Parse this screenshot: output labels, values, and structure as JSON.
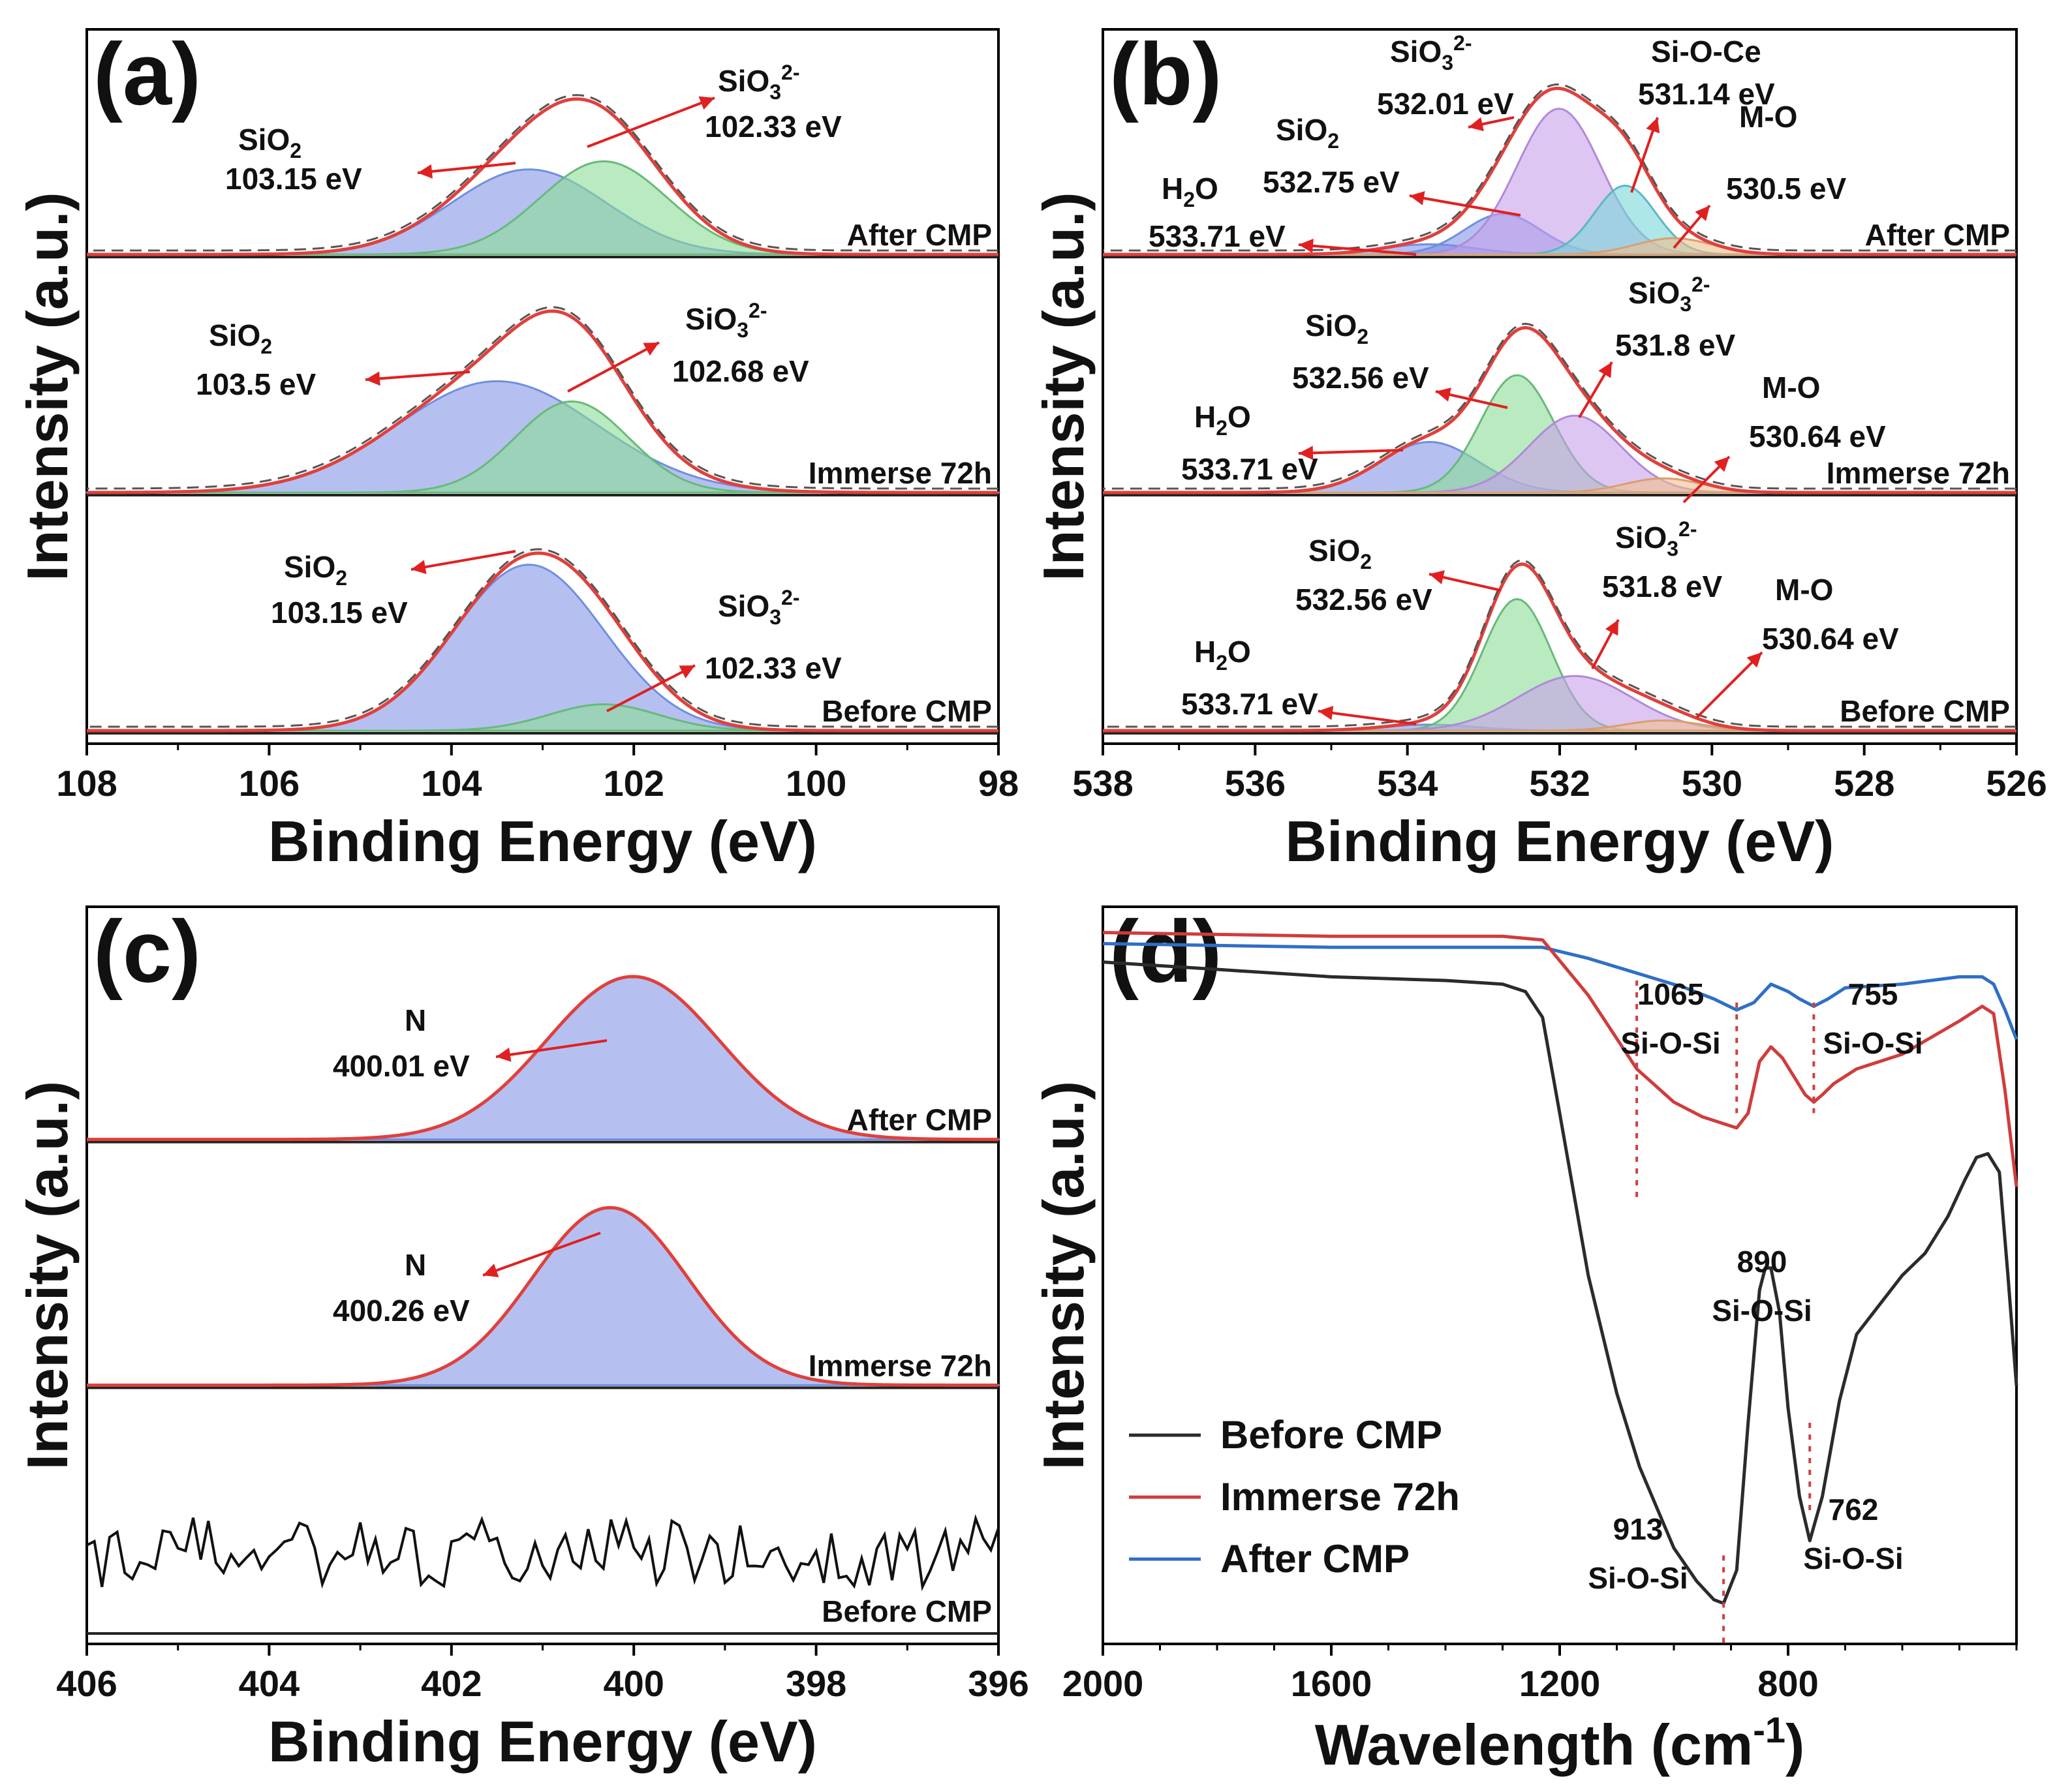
{
  "chart_data": [
    {
      "type": "line",
      "panel": "(a)",
      "xlabel": "Binding Energy (eV)",
      "ylabel": "Intensity (a.u.)",
      "xlim": [
        108,
        98
      ],
      "x_ticks": [
        "108",
        "106",
        "104",
        "102",
        "100",
        "98"
      ],
      "series_labels": [
        "After CMP",
        "Immerse 72h",
        "Before CMP"
      ],
      "annotations": [
        {
          "name": "SiO",
          "sub": "2",
          "sup": "",
          "value": "103.15 eV"
        },
        {
          "name": "SiO",
          "sub": "3",
          "sup": "2-",
          "value": "102.33 eV"
        },
        {
          "name": "SiO",
          "sub": "2",
          "sup": "",
          "value": "103.5 eV"
        },
        {
          "name": "SiO",
          "sub": "3",
          "sup": "2-",
          "value": "102.68 eV"
        },
        {
          "name": "SiO",
          "sub": "2",
          "sup": "",
          "value": "103.15 eV"
        },
        {
          "name": "SiO",
          "sub": "3",
          "sup": "2-",
          "value": "102.33 eV"
        }
      ],
      "stacks": [
        {
          "label": "After CMP",
          "peaks": [
            {
              "component": "SiO2",
              "center": 103.15,
              "height": 0.42,
              "width": 0.85,
              "color": "blue"
            },
            {
              "component": "SiO3 2-",
              "center": 102.33,
              "height": 0.46,
              "width": 0.7,
              "color": "green"
            }
          ]
        },
        {
          "label": "Immerse 72h",
          "peaks": [
            {
              "component": "SiO2",
              "center": 103.5,
              "height": 0.55,
              "width": 1.1,
              "color": "blue"
            },
            {
              "component": "SiO3 2-",
              "center": 102.68,
              "height": 0.45,
              "width": 0.62,
              "color": "green"
            }
          ]
        },
        {
          "label": "Before CMP",
          "peaks": [
            {
              "component": "SiO2",
              "center": 103.15,
              "height": 0.82,
              "width": 0.82,
              "color": "blue"
            },
            {
              "component": "SiO3 2-",
              "center": 102.33,
              "height": 0.13,
              "width": 0.6,
              "color": "green"
            }
          ]
        }
      ]
    },
    {
      "type": "line",
      "panel": "(b)",
      "xlabel": "Binding Energy (eV)",
      "ylabel": "Intensity (a.u.)",
      "xlim": [
        538,
        526
      ],
      "x_ticks": [
        "538",
        "536",
        "534",
        "532",
        "530",
        "528",
        "526"
      ],
      "series_labels": [
        "After CMP",
        "Immerse 72h",
        "Before CMP"
      ],
      "annotations": [
        {
          "name": "SiO",
          "sub": "3",
          "sup": "2-",
          "value": "532.01 eV"
        },
        {
          "name": "Si-O-Ce",
          "sub": "",
          "sup": "",
          "value": "531.14 eV"
        },
        {
          "name": "SiO",
          "sub": "2",
          "sup": "",
          "value": "532.75 eV"
        },
        {
          "name": "M-O",
          "sub": "",
          "sup": "",
          "value": "530.5 eV"
        },
        {
          "name": "H",
          "sub": "2",
          "sup": "",
          "name2": "O",
          "value": "533.71 eV"
        },
        {
          "name": "SiO",
          "sub": "3",
          "sup": "2-",
          "value": "531.8 eV"
        },
        {
          "name": "SiO",
          "sub": "2",
          "sup": "",
          "value": "532.56 eV"
        },
        {
          "name": "M-O",
          "sub": "",
          "sup": "",
          "value": "530.64 eV"
        },
        {
          "name": "H",
          "sub": "2",
          "sup": "",
          "name2": "O",
          "value": "533.71 eV"
        },
        {
          "name": "SiO",
          "sub": "2",
          "sup": "",
          "value": "532.56 eV"
        },
        {
          "name": "SiO",
          "sub": "3",
          "sup": "2-",
          "value": "531.8 eV"
        },
        {
          "name": "M-O",
          "sub": "",
          "sup": "",
          "value": "530.64 eV"
        },
        {
          "name": "H",
          "sub": "2",
          "sup": "",
          "name2": "O",
          "value": "533.71 eV"
        }
      ],
      "stacks": [
        {
          "label": "After CMP",
          "peaks": [
            {
              "component": "H2O",
              "center": 533.71,
              "height": 0.05,
              "width": 0.6,
              "color": "blue"
            },
            {
              "component": "SiO2",
              "center": 532.75,
              "height": 0.2,
              "width": 0.5,
              "color": "blue"
            },
            {
              "component": "SiO3 2-",
              "center": 532.01,
              "height": 0.72,
              "width": 0.55,
              "color": "purple"
            },
            {
              "component": "Si-O-Ce",
              "center": 531.14,
              "height": 0.34,
              "width": 0.4,
              "color": "cyan"
            },
            {
              "component": "M-O",
              "center": 530.5,
              "height": 0.08,
              "width": 0.5,
              "color": "orange"
            }
          ]
        },
        {
          "label": "Immerse 72h",
          "peaks": [
            {
              "component": "H2O",
              "center": 533.71,
              "height": 0.25,
              "width": 0.65,
              "color": "blue"
            },
            {
              "component": "SiO2",
              "center": 532.56,
              "height": 0.58,
              "width": 0.48,
              "color": "green"
            },
            {
              "component": "SiO3 2-",
              "center": 531.8,
              "height": 0.38,
              "width": 0.6,
              "color": "purple"
            },
            {
              "component": "M-O",
              "center": 530.64,
              "height": 0.07,
              "width": 0.5,
              "color": "orange"
            }
          ]
        },
        {
          "label": "Before CMP",
          "peaks": [
            {
              "component": "H2O",
              "center": 533.71,
              "height": 0.03,
              "width": 0.6,
              "color": "blue"
            },
            {
              "component": "SiO2",
              "center": 532.56,
              "height": 0.65,
              "width": 0.45,
              "color": "green"
            },
            {
              "component": "SiO3 2-",
              "center": 531.8,
              "height": 0.27,
              "width": 0.75,
              "color": "purple"
            },
            {
              "component": "M-O",
              "center": 530.64,
              "height": 0.05,
              "width": 0.5,
              "color": "orange"
            }
          ]
        }
      ]
    },
    {
      "type": "line",
      "panel": "(c)",
      "xlabel": "Binding Energy (eV)",
      "ylabel": "Intensity (a.u.)",
      "xlim": [
        406,
        396
      ],
      "x_ticks": [
        "406",
        "404",
        "402",
        "400",
        "398",
        "396"
      ],
      "series_labels": [
        "After CMP",
        "Immerse 72h",
        "Before CMP"
      ],
      "annotations": [
        {
          "name": "N",
          "sub": "",
          "sup": "",
          "value": "400.01 eV"
        },
        {
          "name": "N",
          "sub": "",
          "sup": "",
          "value": "400.26 eV"
        }
      ],
      "stacks": [
        {
          "label": "After CMP",
          "peaks": [
            {
              "component": "N",
              "center": 400.01,
              "height": 0.78,
              "width": 0.95,
              "color": "blue"
            }
          ]
        },
        {
          "label": "Immerse 72h",
          "peaks": [
            {
              "component": "N",
              "center": 400.26,
              "height": 0.85,
              "width": 0.85,
              "color": "blue"
            }
          ]
        },
        {
          "label": "Before CMP",
          "peaks": []
        }
      ]
    },
    {
      "type": "line",
      "panel": "(d)",
      "xlabel_main": "Wavelength (cm",
      "xlabel_sup": "-1",
      "xlabel_end": ")",
      "ylabel": "Intensity (a.u.)",
      "xlim": [
        2000,
        400
      ],
      "x_ticks": [
        "2000",
        "1600",
        "1200",
        "800"
      ],
      "legend": [
        "Before CMP",
        "Immerse 72h",
        "After CMP"
      ],
      "colors": [
        "#2b2b2b",
        "#d03c3c",
        "#2f6fc6"
      ],
      "annotations": [
        {
          "num": "1065",
          "label": "Si-O-Si"
        },
        {
          "num": "755",
          "label": "Si-O-Si"
        },
        {
          "num": "890",
          "label": "Si-O-Si"
        },
        {
          "num": "913",
          "label": "Si-O-Si"
        },
        {
          "num": "762",
          "label": "Si-O-Si"
        }
      ],
      "series": [
        {
          "name": "After CMP",
          "x": [
            2000,
            1600,
            1300,
            1230,
            1150,
            1065,
            980,
            930,
            890,
            860,
            830,
            800,
            780,
            755,
            730,
            700,
            600,
            500,
            460,
            440,
            420,
            400
          ],
          "y": [
            0.95,
            0.945,
            0.945,
            0.945,
            0.93,
            0.91,
            0.89,
            0.875,
            0.86,
            0.87,
            0.895,
            0.885,
            0.875,
            0.865,
            0.875,
            0.89,
            0.895,
            0.905,
            0.905,
            0.895,
            0.86,
            0.82
          ]
        },
        {
          "name": "Immerse 72h",
          "x": [
            2000,
            1600,
            1300,
            1230,
            1150,
            1065,
            1000,
            950,
            910,
            890,
            870,
            850,
            830,
            810,
            790,
            770,
            755,
            740,
            720,
            680,
            600,
            500,
            460,
            440,
            420,
            400
          ],
          "y": [
            0.965,
            0.96,
            0.96,
            0.955,
            0.88,
            0.78,
            0.735,
            0.715,
            0.705,
            0.7,
            0.72,
            0.79,
            0.81,
            0.795,
            0.77,
            0.745,
            0.735,
            0.745,
            0.76,
            0.78,
            0.8,
            0.845,
            0.865,
            0.855,
            0.75,
            0.62
          ]
        },
        {
          "name": "Before CMP",
          "x": [
            2000,
            1800,
            1600,
            1400,
            1300,
            1260,
            1230,
            1200,
            1150,
            1100,
            1060,
            1000,
            960,
            930,
            913,
            890,
            870,
            850,
            840,
            830,
            815,
            800,
            780,
            762,
            740,
            710,
            680,
            640,
            600,
            560,
            520,
            490,
            470,
            450,
            430,
            415,
            400
          ],
          "y": [
            0.925,
            0.915,
            0.905,
            0.9,
            0.895,
            0.885,
            0.85,
            0.72,
            0.5,
            0.34,
            0.24,
            0.13,
            0.085,
            0.06,
            0.055,
            0.1,
            0.3,
            0.48,
            0.51,
            0.51,
            0.45,
            0.32,
            0.2,
            0.14,
            0.2,
            0.33,
            0.42,
            0.46,
            0.5,
            0.53,
            0.58,
            0.63,
            0.66,
            0.665,
            0.64,
            0.5,
            0.35
          ]
        }
      ]
    }
  ],
  "colors": {
    "fit_envelope": "#e0403c",
    "arrow": "#e02020",
    "raw_dash": "#555555"
  }
}
